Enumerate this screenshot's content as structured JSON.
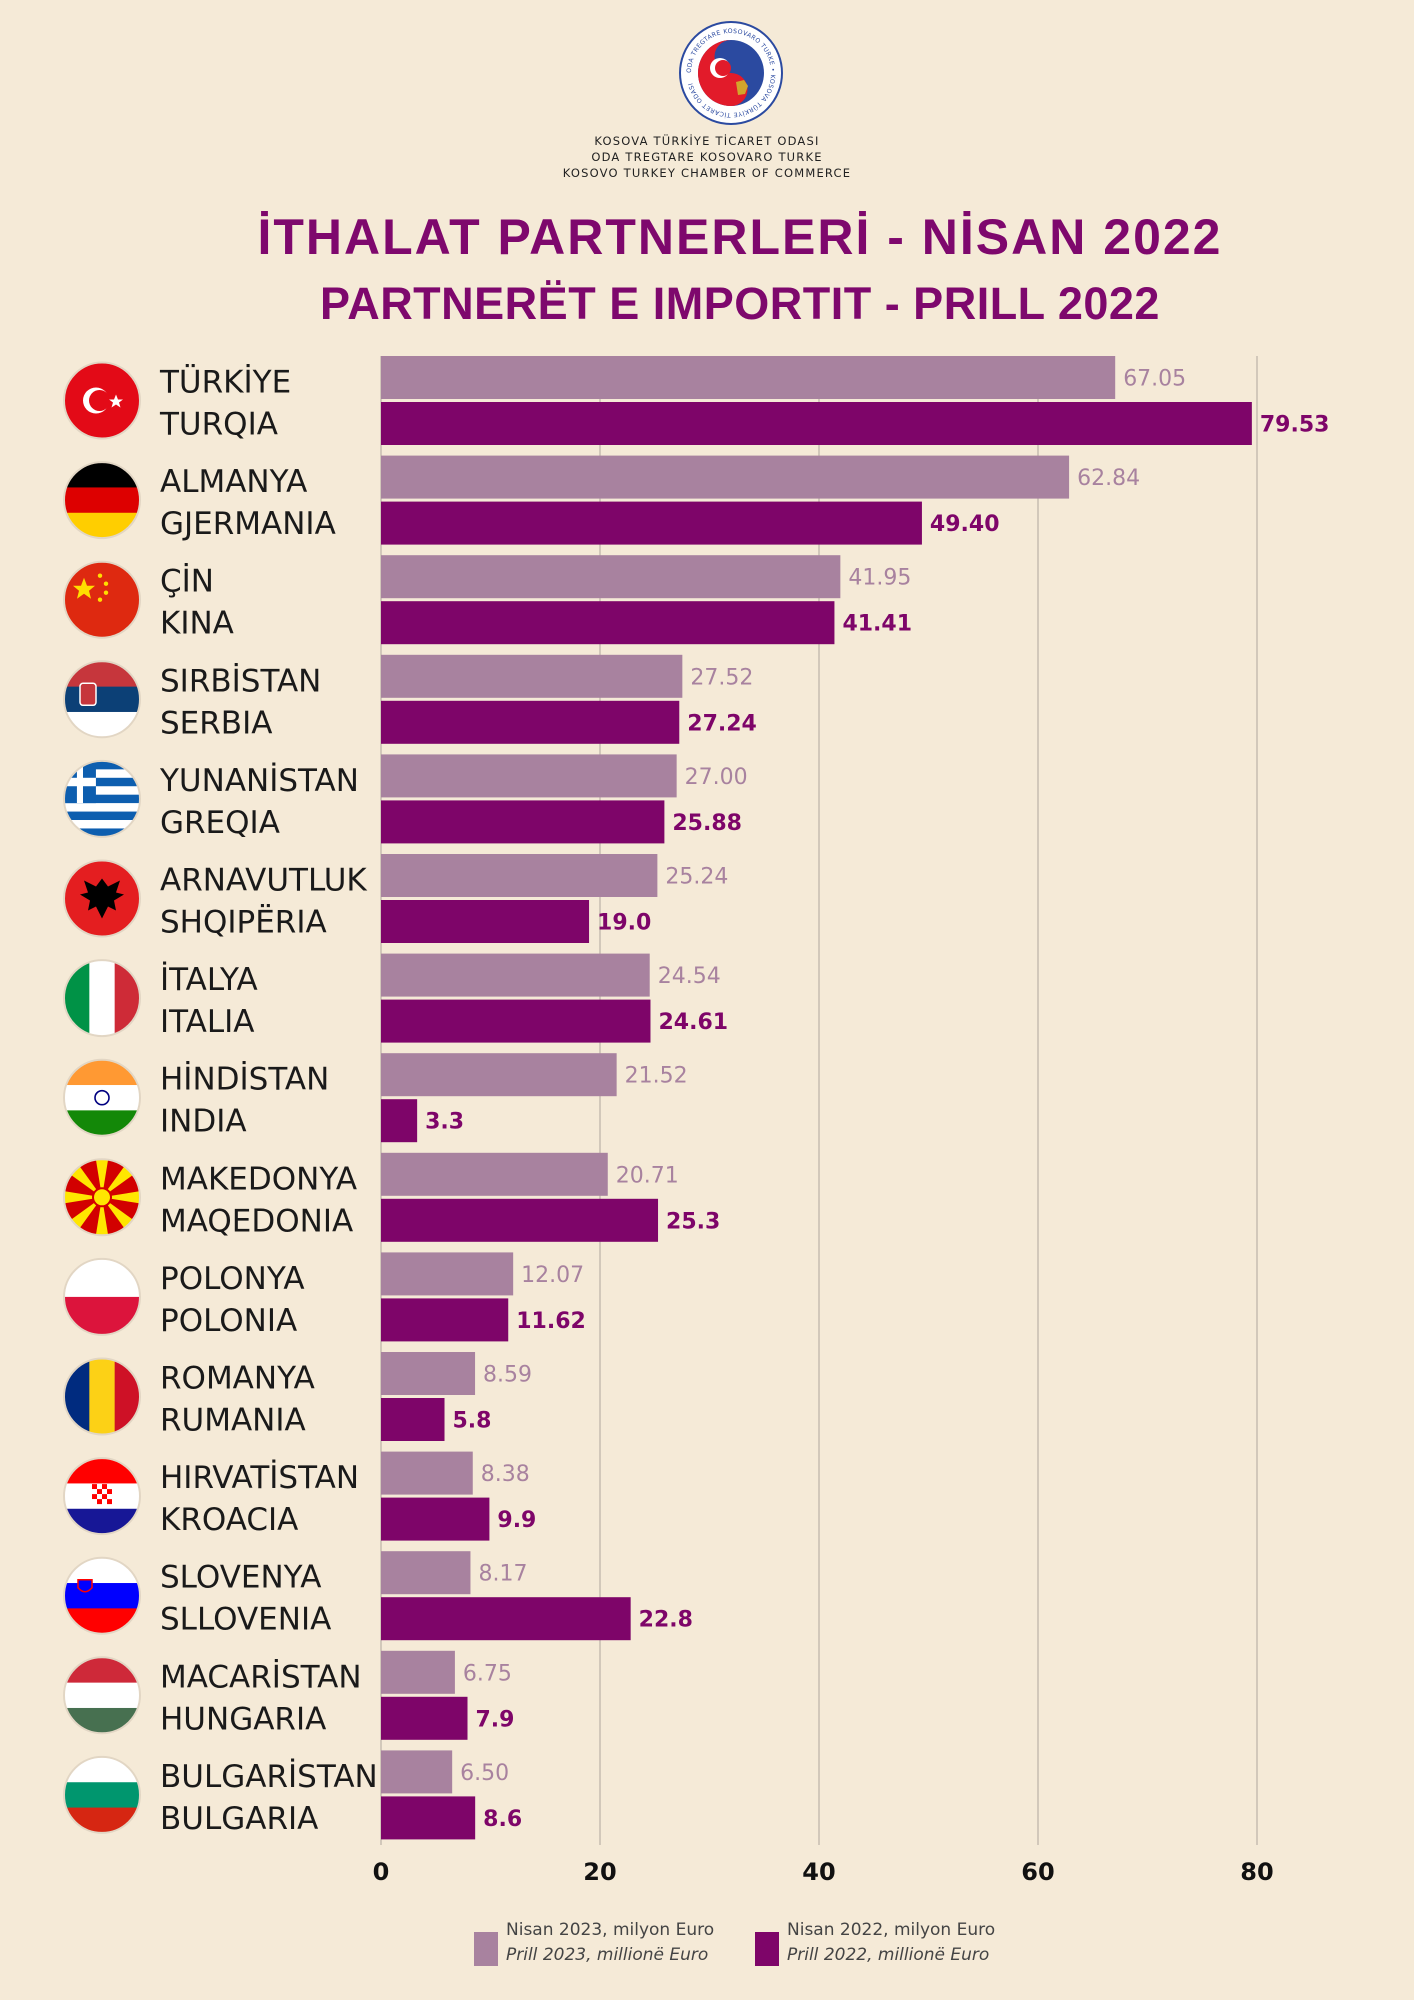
{
  "header": {
    "logo_ring_text": "ODA TREGTARE KOSOVARO TURKE • KOSOVA TÜRKİYE TİCARET ODASI",
    "org_lines": [
      "KOSOVA TÜRKİYE TİCARET ODASI",
      "ODA TREGTARE KOSOVARO TURKE",
      "KOSOVO TURKEY CHAMBER OF COMMERCE"
    ],
    "title_line1": "İTHALAT PARTNERLERİ - NİSAN 2022",
    "title_line2": "PARTNERËT E IMPORTIT - PRILL 2022"
  },
  "colors": {
    "background": "#f5ead7",
    "series_2023": "#a8829f",
    "series_2022": "#7e0569",
    "grid": "#c7bcb0"
  },
  "legend": [
    {
      "line1": "Nisan 2023, milyon Euro",
      "line2": "Prill 2023, millionë Euro",
      "color": "#a8829f"
    },
    {
      "line1": "Nisan 2022, milyon Euro",
      "line2": "Prill 2022, millionë Euro",
      "color": "#7e0569"
    }
  ],
  "chart_data": {
    "type": "bar",
    "orientation": "horizontal",
    "xlim": [
      0,
      80
    ],
    "x_ticks": [
      0,
      20,
      40,
      60,
      80
    ],
    "grid": true,
    "categories": [
      {
        "name_tr": "TÜRKİYE",
        "name_sq": "TURQIA",
        "flag": "turkey-flag-icon"
      },
      {
        "name_tr": "ALMANYA",
        "name_sq": "GJERMANIA",
        "flag": "germany-flag-icon"
      },
      {
        "name_tr": "ÇİN",
        "name_sq": "KINA",
        "flag": "china-flag-icon"
      },
      {
        "name_tr": "SIRBİSTAN",
        "name_sq": "SERBIA",
        "flag": "serbia-flag-icon"
      },
      {
        "name_tr": "YUNANİSTAN",
        "name_sq": "GREQIA",
        "flag": "greece-flag-icon"
      },
      {
        "name_tr": "ARNAVUTLUK",
        "name_sq": "SHQIPËRIA",
        "flag": "albania-flag-icon"
      },
      {
        "name_tr": "İTALYA",
        "name_sq": "ITALIA",
        "flag": "italy-flag-icon"
      },
      {
        "name_tr": "HİNDİSTAN",
        "name_sq": "INDIA",
        "flag": "india-flag-icon"
      },
      {
        "name_tr": "MAKEDONYA",
        "name_sq": "MAQEDONIA",
        "flag": "macedonia-flag-icon"
      },
      {
        "name_tr": "POLONYA",
        "name_sq": "POLONIA",
        "flag": "poland-flag-icon"
      },
      {
        "name_tr": "ROMANYA",
        "name_sq": "RUMANIA",
        "flag": "romania-flag-icon"
      },
      {
        "name_tr": "HIRVATİSTAN",
        "name_sq": "KROACIA",
        "flag": "croatia-flag-icon"
      },
      {
        "name_tr": "SLOVENYA",
        "name_sq": "SLLOVENIA",
        "flag": "slovenia-flag-icon"
      },
      {
        "name_tr": "MACARİSTAN",
        "name_sq": "HUNGARIA",
        "flag": "hungary-flag-icon"
      },
      {
        "name_tr": "BULGARİSTAN",
        "name_sq": "BULGARIA",
        "flag": "bulgaria-flag-icon"
      }
    ],
    "series": [
      {
        "name": "Nisan 2023, milyon Euro",
        "values": [
          67.05,
          62.84,
          41.95,
          27.52,
          27.0,
          25.24,
          24.54,
          21.52,
          20.71,
          12.07,
          8.59,
          8.38,
          8.17,
          6.75,
          6.5
        ],
        "labels": [
          "67.05",
          "62.84",
          "41.95",
          "27.52",
          "27.00",
          "25.24",
          "24.54",
          "21.52",
          "20.71",
          "12.07",
          "8.59",
          "8.38",
          "8.17",
          "6.75",
          "6.50"
        ]
      },
      {
        "name": "Nisan 2022, milyon Euro",
        "values": [
          79.53,
          49.4,
          41.41,
          27.24,
          25.88,
          19.0,
          24.61,
          3.3,
          25.3,
          11.62,
          5.8,
          9.9,
          22.8,
          7.9,
          8.6
        ],
        "labels": [
          "79.53",
          "49.40",
          "41.41",
          "27.24",
          "25.88",
          "19.0",
          "24.61",
          "3.3",
          "25.3",
          "11.62",
          "5.8",
          "9.9",
          "22.8",
          "7.9",
          "8.6"
        ]
      }
    ]
  }
}
